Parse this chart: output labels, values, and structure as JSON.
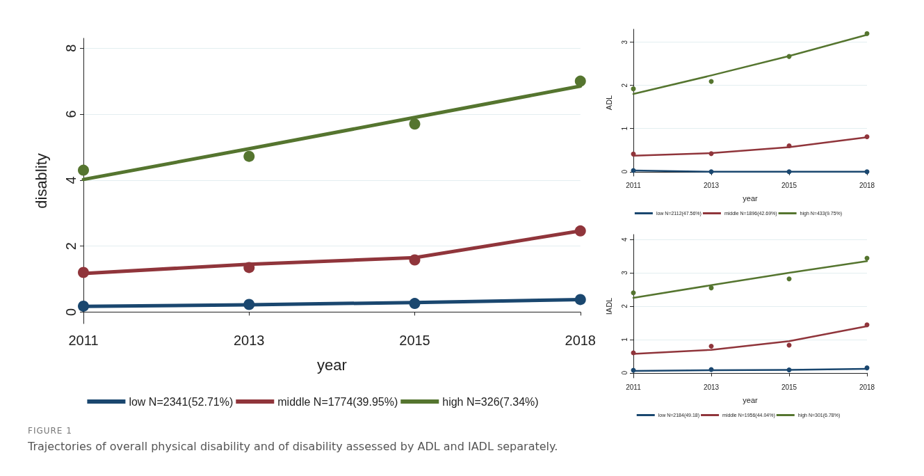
{
  "chart_data": [
    {
      "type": "line",
      "xlabel": "year",
      "ylabel": "disablity",
      "categories": [
        "2011",
        "2013",
        "2015",
        "2018"
      ],
      "ylim": [
        -0.35,
        8.3
      ],
      "yticks": [
        0,
        2,
        4,
        6,
        8
      ],
      "grid": "y",
      "legend": "bottom",
      "annotations": [
        "FIGURE 1",
        "Trajectories of overall physical disability and of disability assessed by ADL and IADL separately."
      ],
      "series": [
        {
          "name": "low N=2341(52.71%)",
          "type": "line",
          "marker": "none",
          "color": "#1a476f",
          "values": [
            0.17,
            0.22,
            0.29,
            0.38
          ]
        },
        {
          "name": "middle N=1774(39.95%)",
          "type": "line",
          "marker": "none",
          "color": "#90353b",
          "values": [
            1.17,
            1.45,
            1.65,
            2.46
          ]
        },
        {
          "name": "high N=326(7.34%)",
          "type": "line",
          "marker": "none",
          "color": "#55752f",
          "values": [
            4.02,
            4.95,
            5.9,
            6.85
          ]
        },
        {
          "type": "scatter",
          "marker": "circle",
          "color": "#1a476f",
          "values": [
            0.18,
            0.23,
            0.26,
            0.38
          ]
        },
        {
          "type": "scatter",
          "marker": "circle",
          "color": "#90353b",
          "values": [
            1.2,
            1.35,
            1.58,
            2.46
          ]
        },
        {
          "type": "scatter",
          "marker": "circle",
          "color": "#55752f",
          "values": [
            4.3,
            4.72,
            5.7,
            7.0
          ]
        }
      ]
    },
    {
      "type": "line",
      "xlabel": "year",
      "ylabel": "ADL",
      "categories": [
        "2011",
        "2013",
        "2015",
        "2018"
      ],
      "ylim": [
        -0.1,
        3.3
      ],
      "yticks": [
        0,
        1,
        2,
        3
      ],
      "grid": "y",
      "legend": "bottom",
      "series": [
        {
          "name": "low N=2112(47.56%)",
          "type": "line",
          "marker": "none",
          "color": "#1a476f",
          "values": [
            0.03,
            0.0,
            0.0,
            0.0
          ]
        },
        {
          "name": "middle N=1896(42.69%)",
          "type": "line",
          "marker": "none",
          "color": "#90353b",
          "values": [
            0.37,
            0.43,
            0.57,
            0.8
          ]
        },
        {
          "name": "high N=433(9.75%)",
          "type": "line",
          "marker": "none",
          "color": "#55752f",
          "values": [
            1.8,
            2.23,
            2.68,
            3.17
          ]
        },
        {
          "type": "scatter",
          "marker": "circle",
          "color": "#1a476f",
          "values": [
            0.03,
            0.0,
            0.0,
            0.0
          ]
        },
        {
          "type": "scatter",
          "marker": "circle",
          "color": "#90353b",
          "values": [
            0.41,
            0.42,
            0.6,
            0.81
          ]
        },
        {
          "type": "scatter",
          "marker": "circle",
          "color": "#55752f",
          "values": [
            1.92,
            2.09,
            2.67,
            3.2
          ]
        }
      ]
    },
    {
      "type": "line",
      "xlabel": "year",
      "ylabel": "IADL",
      "categories": [
        "2011",
        "2013",
        "2015",
        "2018"
      ],
      "ylim": [
        -0.15,
        4.15
      ],
      "yticks": [
        0,
        1,
        2,
        3,
        4
      ],
      "grid": "y",
      "legend": "bottom",
      "series": [
        {
          "name": "low N=2184(49.18)",
          "type": "line",
          "marker": "none",
          "color": "#1a476f",
          "values": [
            0.06,
            0.08,
            0.09,
            0.12
          ]
        },
        {
          "name": "middle N=1956(44.04%)",
          "type": "line",
          "marker": "none",
          "color": "#90353b",
          "values": [
            0.57,
            0.69,
            0.95,
            1.4
          ]
        },
        {
          "name": "high N=301(6.78%)",
          "type": "line",
          "marker": "none",
          "color": "#55752f",
          "values": [
            2.25,
            2.63,
            3.0,
            3.35
          ]
        },
        {
          "type": "scatter",
          "marker": "circle",
          "color": "#1a476f",
          "values": [
            0.08,
            0.1,
            0.09,
            0.15
          ]
        },
        {
          "type": "scatter",
          "marker": "circle",
          "color": "#90353b",
          "values": [
            0.6,
            0.8,
            0.83,
            1.44
          ]
        },
        {
          "type": "scatter",
          "marker": "circle",
          "color": "#55752f",
          "values": [
            2.4,
            2.55,
            2.82,
            3.44
          ]
        }
      ]
    }
  ]
}
